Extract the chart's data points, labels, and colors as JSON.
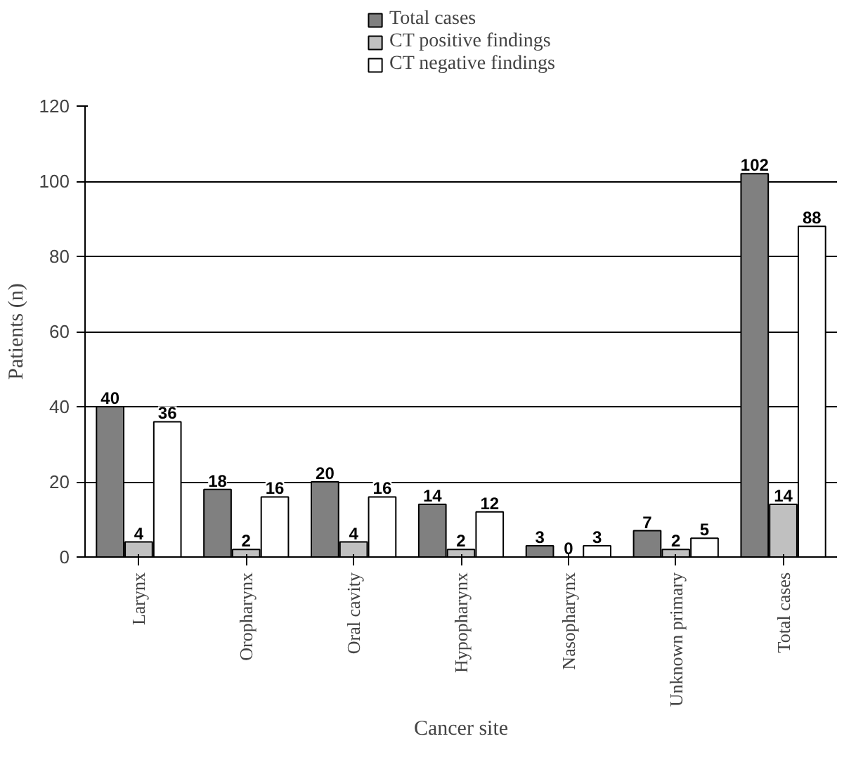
{
  "chart_data": {
    "type": "bar",
    "xlabel": "Cancer site",
    "ylabel": "Patients (n)",
    "categories": [
      "Larynx",
      "Oropharynx",
      "Oral cavity",
      "Hypopharynx",
      "Nasopharynx",
      "Unknown primary",
      "Total cases"
    ],
    "series": [
      {
        "name": "Total cases",
        "color": "#808080",
        "values": [
          40,
          18,
          20,
          14,
          3,
          7,
          102
        ]
      },
      {
        "name": "CT positive findings",
        "color": "#c0c0c0",
        "values": [
          4,
          2,
          4,
          2,
          0,
          2,
          14
        ]
      },
      {
        "name": "CT negative findings",
        "color": "#ffffff",
        "values": [
          36,
          16,
          16,
          12,
          3,
          5,
          88
        ]
      }
    ],
    "ylim": [
      0,
      120
    ],
    "yticks": [
      0,
      20,
      40,
      60,
      80,
      100,
      120
    ],
    "grid": "y",
    "legend": "top",
    "data_labels": true
  }
}
